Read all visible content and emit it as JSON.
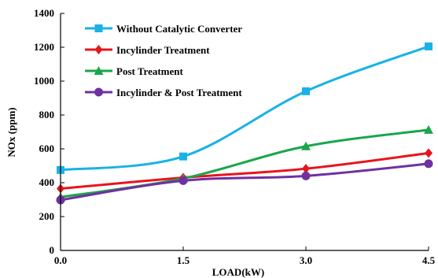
{
  "chart_data": {
    "type": "line",
    "xlabel": "LOAD(kW)",
    "ylabel": "NOx (ppm)",
    "x": [
      0.0,
      1.5,
      3.0,
      4.5
    ],
    "x_tick_labels": [
      "0.0",
      "1.5",
      "3.0",
      "4.5"
    ],
    "xlim": [
      0,
      4.5
    ],
    "ylim": [
      0,
      1400
    ],
    "y_ticks": [
      0,
      200,
      400,
      600,
      800,
      1000,
      1200,
      1400
    ],
    "grid": false,
    "legend_position": "top-left",
    "series": [
      {
        "name": "Without Catalytic Converter",
        "values": [
          475,
          555,
          940,
          1205
        ],
        "color": "#19b2e6",
        "marker": "square"
      },
      {
        "name": "Incylinder Treatment",
        "values": [
          365,
          430,
          483,
          575
        ],
        "color": "#e8141d",
        "marker": "diamond"
      },
      {
        "name": "Post Treatment",
        "values": [
          315,
          425,
          615,
          712
        ],
        "color": "#1aa64a",
        "marker": "triangle"
      },
      {
        "name": "Incylinder & Post Treatment",
        "values": [
          298,
          412,
          440,
          512
        ],
        "color": "#7030a0",
        "marker": "circle"
      }
    ]
  }
}
